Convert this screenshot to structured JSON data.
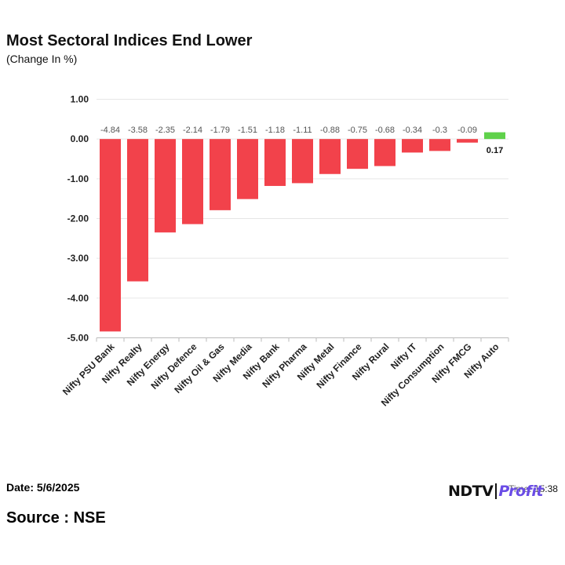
{
  "header": {
    "title": "Most Sectoral Indices End Lower",
    "subtitle": "(Change In %)"
  },
  "footer": {
    "date": "Date: 5/6/2025",
    "source": "Source : NSE",
    "time": "Time: 15:38",
    "logo_left": "NDTV",
    "logo_right": "Profit"
  },
  "chart_data": {
    "type": "bar",
    "categories": [
      "Nifty PSU Bank",
      "Nifty Realty",
      "Nifty Energy",
      "Nifty Defence",
      "Nifty Oil & Gas",
      "Nifty Media",
      "Nifty Bank",
      "Nifty Pharma",
      "Nifty Metal",
      "Nifty Finance",
      "Nifty Rural",
      "Nifty IT",
      "Nifty Consumption",
      "Nifty FMCG",
      "Nifty Auto"
    ],
    "values": [
      -4.84,
      -3.58,
      -2.35,
      -2.14,
      -1.79,
      -1.51,
      -1.18,
      -1.11,
      -0.88,
      -0.75,
      -0.68,
      -0.34,
      -0.3,
      -0.09,
      0.17
    ],
    "value_labels": [
      "-4.84",
      "-3.58",
      "-2.35",
      "-2.14",
      "-1.79",
      "-1.51",
      "-1.18",
      "-1.11",
      "-0.88",
      "-0.75",
      "-0.68",
      "-0.34",
      "-0.3",
      "-0.09",
      "0.17"
    ],
    "ylim": [
      -5,
      1
    ],
    "yticks": [
      1,
      0,
      -1,
      -2,
      -3,
      -4,
      -5
    ],
    "ytick_labels": [
      "1.00",
      "0.00",
      "-1.00",
      "-2.00",
      "-3.00",
      "-4.00",
      "-5.00"
    ],
    "grid": true,
    "colors": {
      "negative": "#f2424b",
      "positive": "#5fd14a",
      "grid": "#e6e6e6",
      "axis": "#bbbbbb"
    }
  }
}
